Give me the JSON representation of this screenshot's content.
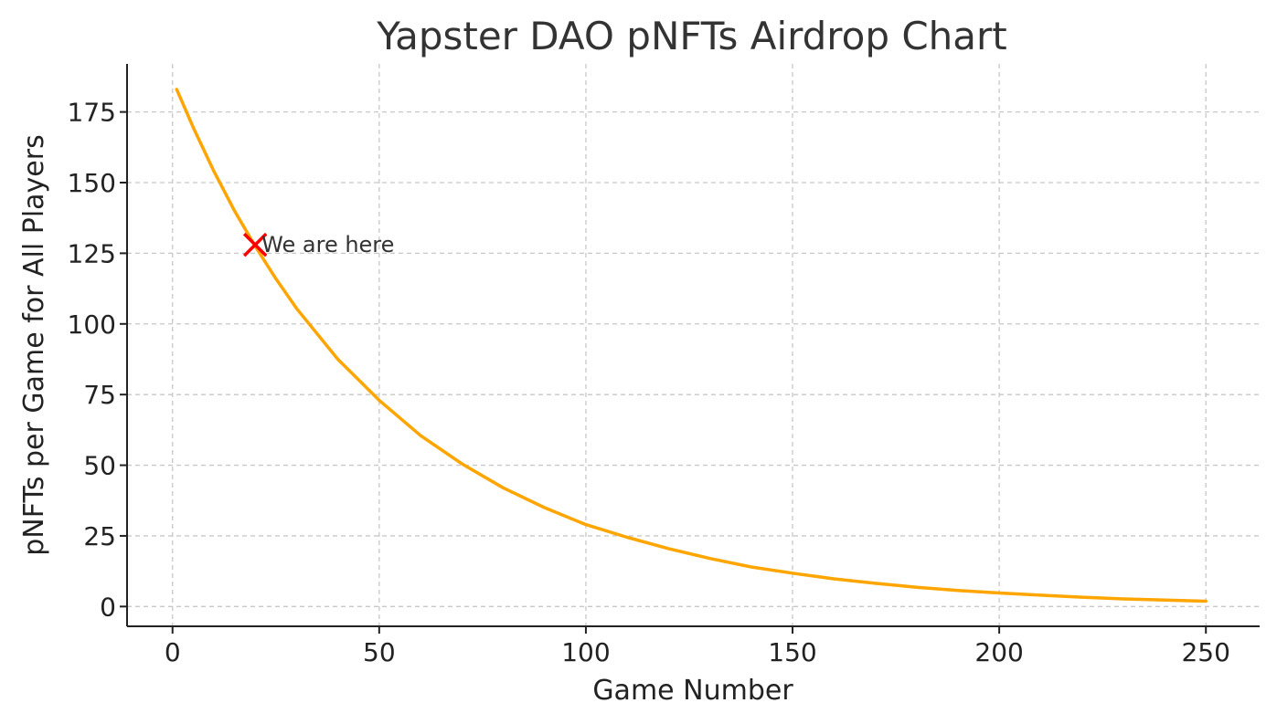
{
  "chart_data": {
    "type": "line",
    "title": "Yapster DAO pNFTs Airdrop Chart",
    "xlabel": "Game Number",
    "ylabel": "pNFTs per Game for All Players",
    "xlim": [
      -11,
      263
    ],
    "ylim": [
      -7,
      192
    ],
    "xticks": [
      0,
      50,
      100,
      150,
      200,
      250
    ],
    "yticks": [
      0,
      25,
      50,
      75,
      100,
      125,
      150,
      175
    ],
    "grid": true,
    "series": [
      {
        "color": "#FFA500",
        "x": [
          1,
          5,
          10,
          15,
          20,
          25,
          30,
          40,
          50,
          60,
          70,
          80,
          90,
          100,
          110,
          120,
          130,
          140,
          150,
          160,
          170,
          180,
          190,
          200,
          210,
          220,
          230,
          240,
          250
        ],
        "y": [
          183,
          169.5,
          154,
          140,
          127.5,
          116,
          105.5,
          87.5,
          73,
          60.5,
          50.5,
          42,
          35,
          29,
          24.5,
          20.5,
          17,
          14,
          11.8,
          9.8,
          8.2,
          6.8,
          5.7,
          4.8,
          4,
          3.3,
          2.7,
          2.3,
          1.9
        ]
      }
    ],
    "annotations": [
      {
        "text": "We are here",
        "x": 20,
        "y": 128,
        "marker": "x",
        "marker_color": "#FF0000"
      }
    ]
  }
}
